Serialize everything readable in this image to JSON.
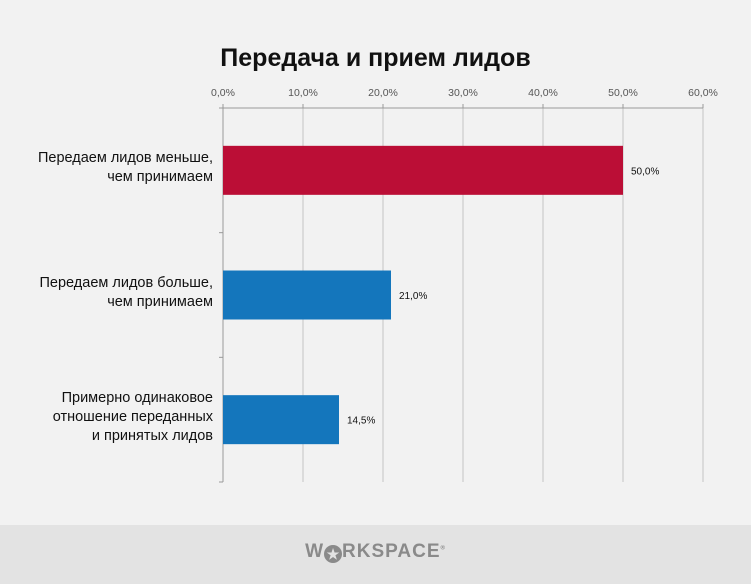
{
  "chart_data": {
    "type": "bar",
    "orientation": "horizontal",
    "title": "Передача и прием лидов",
    "categories": [
      "Передаем лидов меньше, чем принимаем",
      "Передаем лидов больше, чем принимаем",
      "Примерно одинаковое отношение переданных и принятых лидов"
    ],
    "category_lines": [
      [
        "Передаем лидов меньше,",
        "чем принимаем"
      ],
      [
        "Передаем лидов больше,",
        "чем принимаем"
      ],
      [
        "Примерно одинаковое",
        "отношение переданных",
        "и принятых лидов"
      ]
    ],
    "values": [
      50.0,
      21.0,
      14.5
    ],
    "data_labels": [
      "50,0%",
      "21,0%",
      "14,5%"
    ],
    "bar_colors": [
      "#bb0e36",
      "#1476bc"
    ],
    "xlim": [
      0,
      60
    ],
    "x_ticks": [
      "0,0%",
      "10,0%",
      "20,0%",
      "30,0%",
      "40,0%",
      "50,0%",
      "60,0%"
    ],
    "x_axis_position": "top",
    "grid": true,
    "xlabel": "",
    "ylabel": ""
  },
  "footer": {
    "logo_text": "WORKSPACE"
  }
}
